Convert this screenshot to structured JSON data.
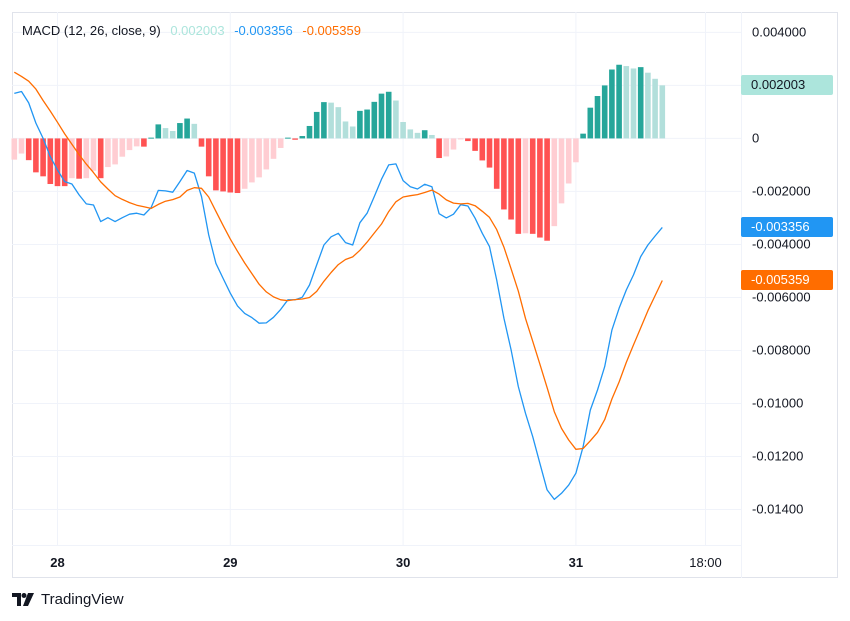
{
  "legend": {
    "title": "MACD (12, 26, close, 9)",
    "histogram_value": "0.002003",
    "macd_value": "-0.003356",
    "signal_value": "-0.005359"
  },
  "badges": {
    "histogram": "0.002003",
    "macd": "-0.003356",
    "signal": "-0.005359"
  },
  "colors": {
    "macd": "#2196F3",
    "signal": "#FF6D00",
    "hist_up_strong": "#26A69A",
    "hist_up_weak": "#B2DFDB",
    "hist_down_strong": "#FF5252",
    "hist_down_weak": "#FFCDD2",
    "hist_badge": "#ACE5DC",
    "grid": "#F0F3FA",
    "border": "#E0E3EB"
  },
  "logo": {
    "text": "TradingView"
  },
  "chart_data": {
    "type": "line",
    "indicator": "MACD",
    "params": {
      "fast": 12,
      "slow": 26,
      "source": "close",
      "signal": 9
    },
    "x_first": "27 18:00",
    "x_interval": "1h",
    "ylim": [
      -0.01534,
      0.00477
    ],
    "grid": true,
    "y_gridlines": [
      0.004,
      0.002,
      0,
      -0.002,
      -0.004,
      -0.006,
      -0.008,
      -0.01,
      -0.012,
      -0.014
    ],
    "y_ticks": [
      {
        "value": 0.004,
        "label": "0.004000"
      },
      {
        "value": 0,
        "label": "0"
      },
      {
        "value": -0.002,
        "label": "-0.002000"
      },
      {
        "value": -0.004,
        "label": "-0.004000"
      },
      {
        "value": -0.006,
        "label": "-0.006000"
      },
      {
        "value": -0.008,
        "label": "-0.008000"
      },
      {
        "value": -0.01,
        "label": "-0.01000"
      },
      {
        "value": -0.012,
        "label": "-0.01200"
      },
      {
        "value": -0.014,
        "label": "-0.01400"
      }
    ],
    "x_ticks": [
      {
        "label": "28",
        "at": "28 00:00",
        "bold": true
      },
      {
        "label": "29",
        "at": "29 00:00",
        "bold": true
      },
      {
        "label": "30",
        "at": "30 00:00",
        "bold": true
      },
      {
        "label": "31",
        "at": "31 00:00",
        "bold": true
      },
      {
        "label": "18:00",
        "at": "31 18:00",
        "bold": false
      }
    ],
    "histogram": [
      -0.0008,
      -0.00057,
      -0.00082,
      -0.00128,
      -0.00143,
      -0.00172,
      -0.0018,
      -0.0018,
      -0.0015,
      -0.00152,
      -0.0015,
      -0.00122,
      -0.0015,
      -0.00108,
      -0.00098,
      -0.00069,
      -0.00044,
      -0.0003,
      -0.00031,
      3e-05,
      0.00053,
      0.00039,
      0.00028,
      0.00058,
      0.00075,
      0.00055,
      -0.00031,
      -0.00143,
      -0.00196,
      -0.002,
      -0.00204,
      -0.00206,
      -0.0019,
      -0.00166,
      -0.00147,
      -0.00117,
      -0.00077,
      -0.00036,
      3e-05,
      -5e-05,
      9e-05,
      0.00047,
      0.001,
      0.00137,
      0.00135,
      0.00118,
      0.00064,
      0.00045,
      0.00104,
      0.00109,
      0.00138,
      0.00169,
      0.00176,
      0.00143,
      0.00062,
      0.00034,
      0.00021,
      0.00031,
      0.00013,
      -0.00074,
      -0.00068,
      -0.00042,
      -3e-05,
      -0.0001,
      -0.00047,
      -0.00083,
      -0.0011,
      -0.0019,
      -0.00268,
      -0.00306,
      -0.0036,
      -0.00358,
      -0.0036,
      -0.00374,
      -0.00386,
      -0.00331,
      -0.00245,
      -0.0017,
      -0.0009,
      0.00018,
      0.00116,
      0.0016,
      0.002,
      0.0026,
      0.00278,
      0.00273,
      0.00264,
      0.00269,
      0.00248,
      0.00225,
      0.002003
    ],
    "series": [
      {
        "name": "MACD",
        "values": [
          0.0017,
          0.00177,
          0.00134,
          0.00058,
          0.0,
          -0.00069,
          -0.00119,
          -0.00163,
          -0.00172,
          -0.00213,
          -0.00247,
          -0.00251,
          -0.00314,
          -0.00299,
          -0.00314,
          -0.00299,
          -0.00286,
          -0.00282,
          -0.00289,
          -0.00261,
          -0.00196,
          -0.00198,
          -0.00203,
          -0.00163,
          -0.00121,
          -0.00131,
          -0.00219,
          -0.00364,
          -0.00471,
          -0.00528,
          -0.00584,
          -0.00632,
          -0.0066,
          -0.00676,
          -0.00697,
          -0.00696,
          -0.00675,
          -0.00645,
          -0.00609,
          -0.00609,
          -0.00599,
          -0.00553,
          -0.00477,
          -0.00402,
          -0.00371,
          -0.00358,
          -0.00393,
          -0.00402,
          -0.00318,
          -0.00282,
          -0.00219,
          -0.00154,
          -0.001,
          -0.00096,
          -0.00159,
          -0.00182,
          -0.00191,
          -0.00173,
          -0.00182,
          -0.00284,
          -0.003,
          -0.00286,
          -0.0025,
          -0.00255,
          -0.00301,
          -0.00358,
          -0.00408,
          -0.00534,
          -0.00678,
          -0.00798,
          -0.00936,
          -0.01037,
          -0.01125,
          -0.01226,
          -0.01326,
          -0.01362,
          -0.01339,
          -0.01308,
          -0.01263,
          -0.01163,
          -0.01025,
          -0.00949,
          -0.00861,
          -0.00723,
          -0.00641,
          -0.00572,
          -0.00515,
          -0.00446,
          -0.00402,
          -0.00368,
          -0.003356
        ]
      },
      {
        "name": "Signal",
        "values": [
          0.0025,
          0.00234,
          0.00216,
          0.00186,
          0.00143,
          0.00103,
          0.00061,
          0.00017,
          -0.00022,
          -0.00061,
          -0.00097,
          -0.00129,
          -0.00164,
          -0.00191,
          -0.00216,
          -0.0023,
          -0.00242,
          -0.00252,
          -0.00258,
          -0.00264,
          -0.00249,
          -0.00237,
          -0.00231,
          -0.00221,
          -0.00196,
          -0.00186,
          -0.00188,
          -0.00221,
          -0.00275,
          -0.00328,
          -0.0038,
          -0.00426,
          -0.0047,
          -0.0051,
          -0.0055,
          -0.00579,
          -0.00598,
          -0.00609,
          -0.00612,
          -0.00608,
          -0.00606,
          -0.006,
          -0.00577,
          -0.00539,
          -0.00506,
          -0.00476,
          -0.00457,
          -0.00447,
          -0.00422,
          -0.00391,
          -0.00357,
          -0.00323,
          -0.00276,
          -0.00239,
          -0.00221,
          -0.00216,
          -0.00212,
          -0.00204,
          -0.00195,
          -0.0021,
          -0.00232,
          -0.00244,
          -0.00247,
          -0.00245,
          -0.00254,
          -0.00275,
          -0.00298,
          -0.00344,
          -0.0041,
          -0.00492,
          -0.00576,
          -0.00679,
          -0.00765,
          -0.00852,
          -0.0094,
          -0.01031,
          -0.01094,
          -0.01138,
          -0.01173,
          -0.0117,
          -0.01141,
          -0.01109,
          -0.01061,
          -0.00983,
          -0.00919,
          -0.00845,
          -0.00779,
          -0.00715,
          -0.0065,
          -0.00593,
          -0.005359
        ]
      }
    ]
  }
}
